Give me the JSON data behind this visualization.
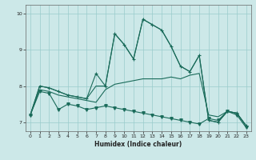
{
  "xlabel": "Humidex (Indice chaleur)",
  "bg_color": "#cce8e8",
  "grid_color": "#99cccc",
  "line_color": "#1a6b5a",
  "xlim": [
    -0.5,
    23.5
  ],
  "ylim": [
    6.75,
    10.25
  ],
  "x_ticks": [
    0,
    1,
    2,
    3,
    4,
    5,
    6,
    7,
    8,
    9,
    10,
    11,
    12,
    13,
    14,
    15,
    16,
    17,
    18,
    19,
    20,
    21,
    22,
    23
  ],
  "y_ticks": [
    7,
    8,
    9,
    10
  ],
  "line_main": {
    "x": [
      0,
      1,
      2,
      3,
      4,
      5,
      6,
      7,
      8,
      9,
      10,
      11,
      12,
      13,
      14,
      15,
      16,
      17,
      18,
      19,
      20,
      21,
      22,
      23
    ],
    "y": [
      7.2,
      8.0,
      7.95,
      7.85,
      7.75,
      7.7,
      7.65,
      8.35,
      8.0,
      9.45,
      9.15,
      8.75,
      9.85,
      9.7,
      9.55,
      9.1,
      8.55,
      8.4,
      8.85,
      7.05,
      7.0,
      7.3,
      7.25,
      6.9
    ],
    "marker": "+"
  },
  "line_upper": {
    "x": [
      0,
      1,
      2,
      3,
      4,
      5,
      6,
      7,
      8,
      9,
      10,
      11,
      12,
      13,
      14,
      15,
      16,
      17,
      18,
      19,
      20,
      21,
      22,
      23
    ],
    "y": [
      7.2,
      8.0,
      7.95,
      7.85,
      7.75,
      7.7,
      7.65,
      8.0,
      8.0,
      9.45,
      9.15,
      8.75,
      9.85,
      9.7,
      9.55,
      9.1,
      8.55,
      8.4,
      8.85,
      7.05,
      7.0,
      7.3,
      7.25,
      6.9
    ]
  },
  "line_mid": {
    "x": [
      0,
      1,
      2,
      3,
      4,
      5,
      6,
      7,
      8,
      9,
      10,
      11,
      12,
      13,
      14,
      15,
      16,
      17,
      18,
      19,
      20,
      21,
      22,
      23
    ],
    "y": [
      7.2,
      7.9,
      7.85,
      7.75,
      7.7,
      7.65,
      7.6,
      7.55,
      7.9,
      8.05,
      8.1,
      8.15,
      8.2,
      8.2,
      8.2,
      8.25,
      8.2,
      8.3,
      8.35,
      7.2,
      7.15,
      7.3,
      7.25,
      6.9
    ]
  },
  "line_low": {
    "x": [
      0,
      1,
      2,
      3,
      4,
      5,
      6,
      7,
      8,
      9,
      10,
      11,
      12,
      13,
      14,
      15,
      16,
      17,
      18,
      19,
      20,
      21,
      22,
      23
    ],
    "y": [
      7.2,
      7.85,
      7.8,
      7.35,
      7.5,
      7.45,
      7.35,
      7.4,
      7.45,
      7.4,
      7.35,
      7.3,
      7.25,
      7.2,
      7.15,
      7.1,
      7.05,
      7.0,
      6.95,
      7.1,
      7.05,
      7.3,
      7.2,
      6.85
    ],
    "marker": "v"
  }
}
